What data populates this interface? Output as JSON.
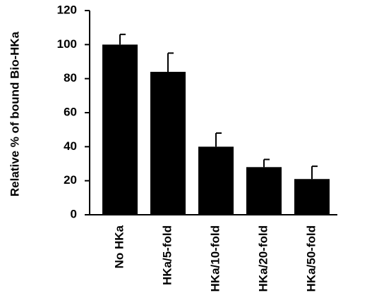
{
  "chart_data": {
    "type": "bar",
    "ylabel": "Relative % of bound Bio-HKa",
    "categories": [
      "No HKa",
      "HKa/5-fold",
      "HKa/10-fold",
      "HKa/20-fold",
      "HKa/50-fold"
    ],
    "values": [
      100,
      84,
      40,
      28,
      21
    ],
    "errors": [
      6,
      11,
      8,
      4.5,
      7.5
    ],
    "color": "#000000",
    "ylim": [
      0,
      120
    ],
    "yticks": [
      0,
      20,
      40,
      60,
      80,
      100,
      120
    ],
    "grid": false
  }
}
